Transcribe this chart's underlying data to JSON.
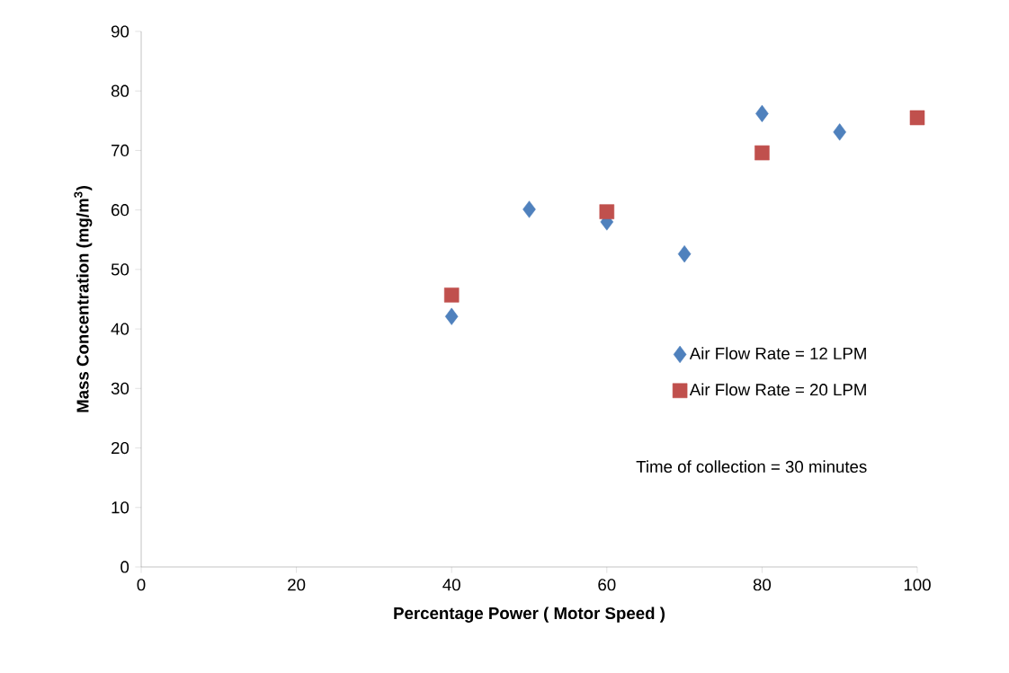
{
  "chart_data": {
    "type": "scatter",
    "xlabel": "Percentage Power ( Motor Speed )",
    "ylabel": "Mass Concentration (mg/m$^{3}$)",
    "annotations": [
      "Time of collection = 30 minutes"
    ],
    "series": [
      {
        "name": "Air Flow Rate = 12 LPM",
        "color": "#4f81bd",
        "marker": "diamond",
        "x": [
          40,
          50,
          60,
          70,
          80,
          90
        ],
        "values": [
          42.1,
          60.1,
          58.0,
          52.6,
          76.2,
          73.1
        ]
      },
      {
        "name": "Air Flow Rate = 20 LPM",
        "color": "#c0504d",
        "marker": "square",
        "x": [
          40,
          60,
          80,
          100
        ],
        "values": [
          45.7,
          59.7,
          69.6,
          75.5
        ]
      }
    ],
    "xlim": [
      0,
      100
    ],
    "xticks": [
      0,
      20,
      40,
      60,
      80,
      100
    ],
    "ylim": [
      0,
      90
    ],
    "yticks": [
      0,
      10,
      20,
      30,
      40,
      50,
      60,
      70,
      80,
      90
    ],
    "grid": false,
    "legend": "right"
  }
}
